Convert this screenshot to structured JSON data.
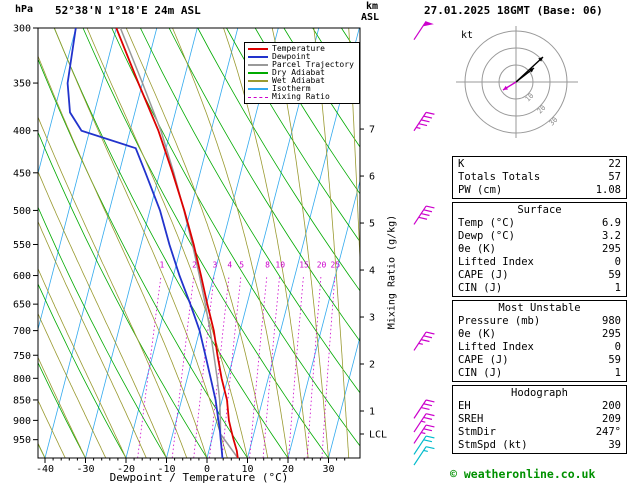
{
  "header": {
    "title": "52°38'N 1°18'E 24m ASL",
    "datetime": "27.01.2025 18GMT (Base: 06)",
    "pressure_unit": "hPa",
    "alt_unit_line1": "km",
    "alt_unit_line2": "ASL"
  },
  "legend": {
    "items": [
      {
        "label": "Temperature",
        "color": "#dd0000",
        "dashed": false
      },
      {
        "label": "Dewpoint",
        "color": "#2233cc",
        "dashed": false
      },
      {
        "label": "Parcel Trajectory",
        "color": "#999999",
        "dashed": false
      },
      {
        "label": "Dry Adiabat",
        "color": "#00aa00",
        "dashed": false
      },
      {
        "label": "Wet Adiabat",
        "color": "#9a9a30",
        "dashed": false
      },
      {
        "label": "Isotherm",
        "color": "#33aaee",
        "dashed": false
      },
      {
        "label": "Mixing Ratio",
        "color": "#cc00cc",
        "dashed": true
      }
    ]
  },
  "axes": {
    "pressure_ticks": [
      300,
      350,
      400,
      450,
      500,
      550,
      600,
      650,
      700,
      750,
      800,
      850,
      900,
      950
    ],
    "km_ticks": [
      1,
      2,
      3,
      4,
      5,
      6,
      7
    ],
    "lcl_label": "LCL",
    "x_ticks": [
      -40,
      -30,
      -20,
      -10,
      0,
      10,
      20,
      30
    ],
    "xlabel": "Dewpoint / Temperature (°C)",
    "mixing_label": "Mixing Ratio (g/kg)",
    "mixing_values": [
      1,
      2,
      3,
      4,
      5,
      8,
      10,
      15,
      20,
      25
    ]
  },
  "hodograph_plot": {
    "unit": "kt",
    "ring_labels": [
      10,
      20,
      30
    ]
  },
  "panels": {
    "indices": {
      "rows": [
        {
          "label": "K",
          "value": "22"
        },
        {
          "label": "Totals Totals",
          "value": "57"
        },
        {
          "label": "PW (cm)",
          "value": "1.08"
        }
      ]
    },
    "surface": {
      "title": "Surface",
      "rows": [
        {
          "label": "Temp (°C)",
          "value": "6.9"
        },
        {
          "label": "Dewp (°C)",
          "value": "3.2"
        },
        {
          "label": "θe (K)",
          "value": "295"
        },
        {
          "label": "Lifted Index",
          "value": "0"
        },
        {
          "label": "CAPE (J)",
          "value": "59"
        },
        {
          "label": "CIN (J)",
          "value": "1"
        }
      ]
    },
    "most_unstable": {
      "title": "Most Unstable",
      "rows": [
        {
          "label": "Pressure (mb)",
          "value": "980"
        },
        {
          "label": "θe (K)",
          "value": "295"
        },
        {
          "label": "Lifted Index",
          "value": "0"
        },
        {
          "label": "CAPE (J)",
          "value": "59"
        },
        {
          "label": "CIN (J)",
          "value": "1"
        }
      ]
    },
    "hodograph": {
      "title": "Hodograph",
      "rows": [
        {
          "label": "EH",
          "value": "200"
        },
        {
          "label": "SREH",
          "value": "209"
        },
        {
          "label": "StmDir",
          "value": "247°"
        },
        {
          "label": "StmSpd (kt)",
          "value": "39"
        }
      ]
    }
  },
  "footer": {
    "copyright": "© weatheronline.co.uk"
  },
  "chart_data": {
    "type": "line",
    "title": "Skew-T log-P sounding 52°38'N 1°18'E 24m ASL 27.01.2025 18GMT",
    "xlabel": "Dewpoint / Temperature (°C)",
    "ylabel": "Pressure (hPa)",
    "x_range_c": [
      -40,
      35
    ],
    "pressure_range_hpa": [
      300,
      1000
    ],
    "lcl_pressure": 935,
    "colors": {
      "temperature": "#dd0000",
      "dewpoint": "#2233cc",
      "parcel": "#999999",
      "dry_adiabat": "#00aa00",
      "wet_adiabat": "#9a9a30",
      "isotherm": "#33aaee",
      "mixing_ratio": "#cc00cc"
    },
    "series": [
      {
        "name": "Temperature",
        "points": [
          [
            1000,
            7.6
          ],
          [
            980,
            6.9
          ],
          [
            950,
            5.4
          ],
          [
            925,
            4.2
          ],
          [
            900,
            3.0
          ],
          [
            850,
            1.2
          ],
          [
            800,
            -1.5
          ],
          [
            750,
            -4.0
          ],
          [
            700,
            -6.5
          ],
          [
            650,
            -9.8
          ],
          [
            600,
            -13.2
          ],
          [
            550,
            -17.0
          ],
          [
            500,
            -21.5
          ],
          [
            450,
            -26.8
          ],
          [
            400,
            -33.0
          ],
          [
            350,
            -41.0
          ],
          [
            300,
            -50.0
          ]
        ]
      },
      {
        "name": "Dewpoint",
        "points": [
          [
            1000,
            3.8
          ],
          [
            980,
            3.2
          ],
          [
            950,
            2.2
          ],
          [
            925,
            1.4
          ],
          [
            900,
            0.4
          ],
          [
            850,
            -1.6
          ],
          [
            800,
            -4.2
          ],
          [
            750,
            -7.0
          ],
          [
            700,
            -10.0
          ],
          [
            650,
            -14.0
          ],
          [
            600,
            -18.5
          ],
          [
            550,
            -23.0
          ],
          [
            500,
            -27.5
          ],
          [
            450,
            -33.5
          ],
          [
            420,
            -37.5
          ],
          [
            400,
            -52.0
          ],
          [
            380,
            -56.0
          ],
          [
            350,
            -58.5
          ],
          [
            300,
            -60.0
          ]
        ]
      },
      {
        "name": "Parcel Trajectory",
        "points": [
          [
            1000,
            7.6
          ],
          [
            935,
            1.8
          ],
          [
            900,
            0.9
          ],
          [
            850,
            -0.6
          ],
          [
            800,
            -2.6
          ],
          [
            750,
            -4.9
          ],
          [
            700,
            -7.4
          ],
          [
            650,
            -10.3
          ],
          [
            600,
            -13.6
          ],
          [
            550,
            -17.3
          ],
          [
            500,
            -21.6
          ],
          [
            450,
            -26.5
          ],
          [
            400,
            -32.4
          ],
          [
            350,
            -40.0
          ],
          [
            300,
            -49.0
          ]
        ]
      }
    ],
    "wind_barbs": [
      {
        "pressure": 310,
        "speed_kt": 50,
        "color": "#cc00cc"
      },
      {
        "pressure": 400,
        "speed_kt": 45,
        "color": "#cc00cc"
      },
      {
        "pressure": 520,
        "speed_kt": 40,
        "color": "#cc00cc"
      },
      {
        "pressure": 740,
        "speed_kt": 35,
        "color": "#cc00cc"
      },
      {
        "pressure": 895,
        "speed_kt": 30,
        "color": "#cc00cc"
      },
      {
        "pressure": 930,
        "speed_kt": 25,
        "color": "#cc00cc"
      },
      {
        "pressure": 960,
        "speed_kt": 25,
        "color": "#cc00cc"
      },
      {
        "pressure": 990,
        "speed_kt": 20,
        "color": "#00bbcc"
      },
      {
        "pressure": 1020,
        "speed_kt": 15,
        "color": "#00bbcc"
      }
    ],
    "hodograph_arrows": [
      {
        "dx": 27,
        "dy": -25,
        "color": "#000000"
      },
      {
        "dx": 18,
        "dy": -14,
        "color": "#000000"
      },
      {
        "dx": -13,
        "dy": 8,
        "color": "#cc00cc"
      }
    ]
  }
}
